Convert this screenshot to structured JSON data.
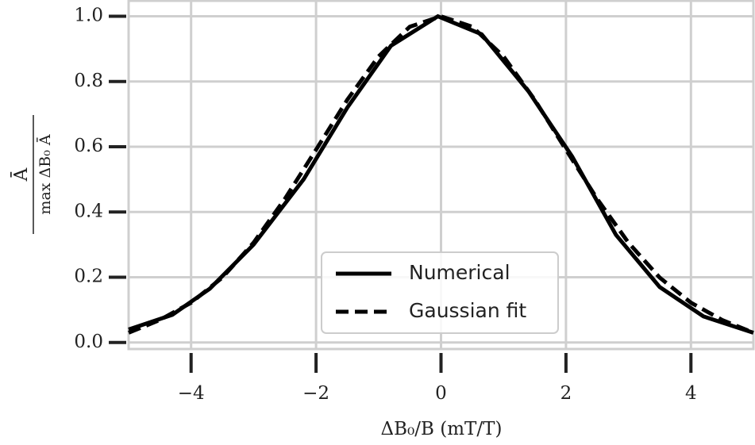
{
  "chart_data": {
    "type": "line",
    "x_label": "ΔB₀/B (mT/T)",
    "y_label": {
      "numerator": "Ā",
      "denominator": "max ΔB₀ Ā"
    },
    "series": [
      {
        "name": "Numerical",
        "color": "#000000",
        "dash": "solid",
        "x": [
          -5,
          -4.3,
          -3.7,
          -3,
          -2.2,
          -1.5,
          -0.8,
          -0.05,
          0.65,
          1.4,
          2.1,
          2.8,
          3.5,
          4.2,
          5
        ],
        "values": [
          0.04,
          0.085,
          0.165,
          0.3,
          0.5,
          0.72,
          0.91,
          1.0,
          0.945,
          0.77,
          0.57,
          0.33,
          0.17,
          0.08,
          0.03
        ]
      },
      {
        "name": "Gaussian fit",
        "color": "#000000",
        "dash": "dashed",
        "x": [
          -5,
          -4.5,
          -4,
          -3.5,
          -3,
          -2.5,
          -2,
          -1.5,
          -1,
          -0.5,
          0,
          0.5,
          1,
          1.5,
          2,
          2.5,
          3,
          3.5,
          4,
          4.5,
          5
        ],
        "values": [
          0.03,
          0.069,
          0.122,
          0.199,
          0.306,
          0.44,
          0.591,
          0.744,
          0.877,
          0.968,
          1.0,
          0.968,
          0.877,
          0.744,
          0.591,
          0.44,
          0.306,
          0.199,
          0.122,
          0.069,
          0.03
        ]
      }
    ],
    "xlim": [
      -5,
      5
    ],
    "ylim": [
      -0.02,
      1.05
    ],
    "xticks": [
      {
        "value": -4,
        "label": "−4"
      },
      {
        "value": -2,
        "label": "−2"
      },
      0,
      2,
      4
    ],
    "yticks": [
      {
        "value": 0,
        "label": "0.0"
      },
      {
        "value": 0.2,
        "label": "0.2"
      },
      {
        "value": 0.4,
        "label": "0.4"
      },
      {
        "value": 0.6,
        "label": "0.6"
      },
      {
        "value": 0.8,
        "label": "0.8"
      },
      {
        "value": 1.0,
        "label": "1.0"
      }
    ],
    "grid": true,
    "legend": "lower-center"
  }
}
